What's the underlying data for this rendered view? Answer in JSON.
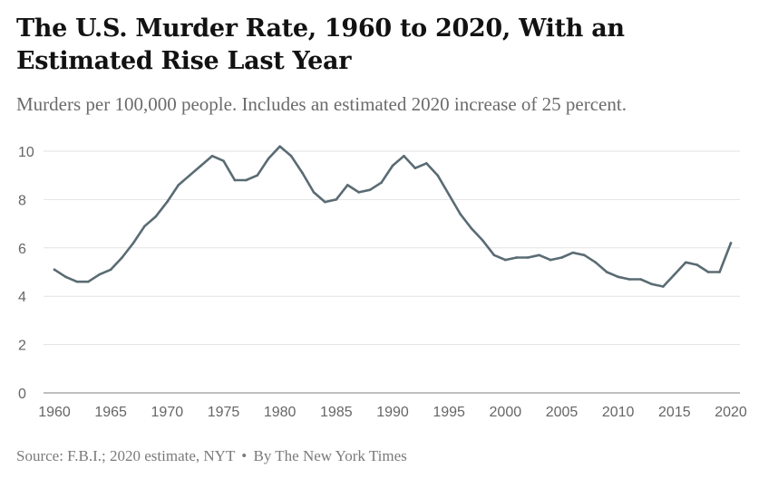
{
  "header": {
    "title": "The U.S. Murder Rate, 1960 to 2020, With an Estimated Rise Last Year",
    "subtitle": "Murders per 100,000 people. Includes an estimated 2020 increase of 25 percent."
  },
  "footer": {
    "source": "Source: F.B.I.; 2020 estimate, NYT",
    "byline": "By The New York Times",
    "separator": "•"
  },
  "colors": {
    "line": "#5a6b73",
    "grid": "#e2e2e2",
    "baseline": "#999999"
  },
  "chart_data": {
    "type": "line",
    "title": "The U.S. Murder Rate, 1960 to 2020, With an Estimated Rise Last Year",
    "subtitle": "Murders per 100,000 people. Includes an estimated 2020 increase of 25 percent.",
    "xlabel": "",
    "ylabel": "",
    "xlim": [
      1960,
      2020
    ],
    "ylim": [
      0,
      10
    ],
    "x_ticks": [
      1960,
      1965,
      1970,
      1975,
      1980,
      1985,
      1990,
      1995,
      2000,
      2005,
      2010,
      2015,
      2020
    ],
    "y_ticks": [
      0,
      2,
      4,
      6,
      8,
      10
    ],
    "grid": true,
    "legend": "none",
    "series": [
      {
        "x": [
          1960,
          1961,
          1962,
          1963,
          1964,
          1965,
          1966,
          1967,
          1968,
          1969,
          1970,
          1971,
          1972,
          1973,
          1974,
          1975,
          1976,
          1977,
          1978,
          1979,
          1980,
          1981,
          1982,
          1983,
          1984,
          1985,
          1986,
          1987,
          1988,
          1989,
          1990,
          1991,
          1992,
          1993,
          1994,
          1995,
          1996,
          1997,
          1998,
          1999,
          2000,
          2001,
          2002,
          2003,
          2004,
          2005,
          2006,
          2007,
          2008,
          2009,
          2010,
          2011,
          2012,
          2013,
          2014,
          2015,
          2016,
          2017,
          2018,
          2019,
          2020
        ],
        "values": [
          5.1,
          4.8,
          4.6,
          4.6,
          4.9,
          5.1,
          5.6,
          6.2,
          6.9,
          7.3,
          7.9,
          8.6,
          9.0,
          9.4,
          9.8,
          9.6,
          8.8,
          8.8,
          9.0,
          9.7,
          10.2,
          9.8,
          9.1,
          8.3,
          7.9,
          8.0,
          8.6,
          8.3,
          8.4,
          8.7,
          9.4,
          9.8,
          9.3,
          9.5,
          9.0,
          8.2,
          7.4,
          6.8,
          6.3,
          5.7,
          5.5,
          5.6,
          5.6,
          5.7,
          5.5,
          5.6,
          5.8,
          5.7,
          5.4,
          5.0,
          4.8,
          4.7,
          4.7,
          4.5,
          4.4,
          4.9,
          5.4,
          5.3,
          5.0,
          5.0,
          6.2
        ]
      }
    ]
  }
}
